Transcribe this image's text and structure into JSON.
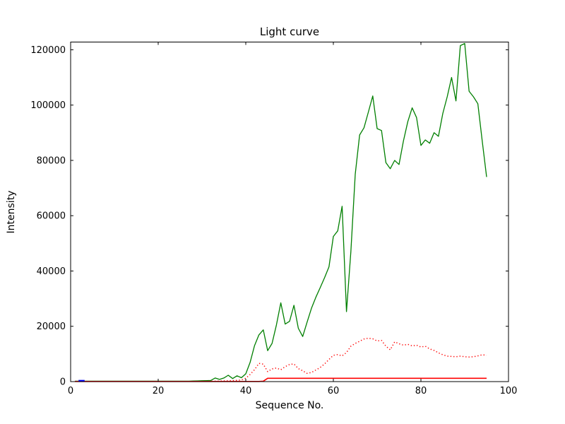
{
  "figure": {
    "background_color": "#ffffff",
    "axis_color": "#000000",
    "text_color": "#000000"
  },
  "chart_data": {
    "type": "line",
    "title": "Light curve",
    "xlabel": "Sequence No.",
    "ylabel": "Intensity",
    "xlim": [
      0,
      100
    ],
    "ylim": [
      0,
      122800
    ],
    "xticks": [
      0,
      20,
      40,
      60,
      80,
      100
    ],
    "yticks": [
      0,
      20000,
      40000,
      60000,
      80000,
      100000,
      120000
    ],
    "grid": false,
    "legend": null,
    "tick_direction": "in",
    "series": [
      {
        "name": "green-intensity-curve",
        "color": "#007f00",
        "line_style": "solid",
        "x_start": 1,
        "y": [
          150,
          150,
          150,
          150,
          150,
          150,
          150,
          150,
          150,
          150,
          150,
          150,
          150,
          150,
          150,
          150,
          150,
          150,
          150,
          150,
          150,
          150,
          150,
          150,
          150,
          150,
          150,
          200,
          250,
          300,
          350,
          400,
          1300,
          800,
          1300,
          2300,
          1100,
          2100,
          1400,
          2800,
          7000,
          13000,
          16900,
          18700,
          11200,
          13800,
          20500,
          28500,
          20800,
          21800,
          27600,
          19300,
          16300,
          21500,
          26500,
          30500,
          34000,
          37600,
          41500,
          52500,
          54500,
          63400,
          25300,
          47000,
          75000,
          89200,
          91800,
          97500,
          103300,
          91500,
          90800,
          79200,
          77000,
          80000,
          78500,
          87000,
          94000,
          99000,
          95500,
          85400,
          87400,
          86200,
          90000,
          88700,
          97000,
          103000,
          110000,
          101500,
          121500,
          122300,
          105000,
          103000,
          100500,
          87000,
          74000
        ]
      },
      {
        "name": "red-dotted-intensity-curve",
        "color": "#ff0000",
        "line_style": "dotted",
        "x_start": 1,
        "y": [
          80,
          80,
          80,
          80,
          80,
          80,
          80,
          80,
          80,
          80,
          80,
          80,
          80,
          80,
          80,
          80,
          80,
          80,
          80,
          80,
          80,
          80,
          80,
          80,
          80,
          80,
          80,
          80,
          80,
          80,
          100,
          130,
          160,
          200,
          250,
          300,
          350,
          450,
          600,
          1200,
          2600,
          4300,
          6600,
          6300,
          3600,
          4600,
          4900,
          4300,
          5400,
          6200,
          6400,
          4700,
          3900,
          3000,
          3300,
          4200,
          5100,
          6400,
          8000,
          9500,
          9800,
          9300,
          10500,
          12800,
          13800,
          14600,
          15400,
          15700,
          15500,
          14700,
          14900,
          12800,
          11500,
          14400,
          13700,
          13200,
          13500,
          12900,
          13200,
          12500,
          12800,
          11800,
          11300,
          10400,
          9700,
          9200,
          9100,
          9000,
          9200,
          9000,
          8900,
          9000,
          9300,
          9700,
          9500
        ]
      },
      {
        "name": "red-baseline-curve",
        "color": "#ff0000",
        "line_style": "solid",
        "x_start": 1,
        "y": [
          60,
          60,
          60,
          60,
          60,
          60,
          60,
          60,
          60,
          60,
          60,
          60,
          60,
          60,
          60,
          60,
          60,
          60,
          60,
          60,
          60,
          60,
          60,
          60,
          60,
          60,
          60,
          60,
          60,
          60,
          60,
          60,
          60,
          60,
          60,
          60,
          60,
          60,
          60,
          60,
          60,
          60,
          60,
          150,
          1200,
          1200,
          1200,
          1200,
          1200,
          1200,
          1200,
          1200,
          1200,
          1200,
          1200,
          1200,
          1200,
          1200,
          1200,
          1200,
          1200,
          1200,
          1200,
          1200,
          1200,
          1200,
          1200,
          1200,
          1200,
          1200,
          1200,
          1200,
          1200,
          1200,
          1200,
          1200,
          1200,
          1200,
          1200,
          1200,
          1200,
          1200,
          1200,
          1200,
          1200,
          1200,
          1200,
          1200,
          1200,
          1200,
          1200,
          1200,
          1200,
          1200,
          1200
        ]
      },
      {
        "name": "blue-short-segment",
        "color": "#0000ff",
        "line_style": "solid",
        "x": [
          1.8,
          3.2
        ],
        "y": [
          280,
          280
        ]
      }
    ]
  }
}
